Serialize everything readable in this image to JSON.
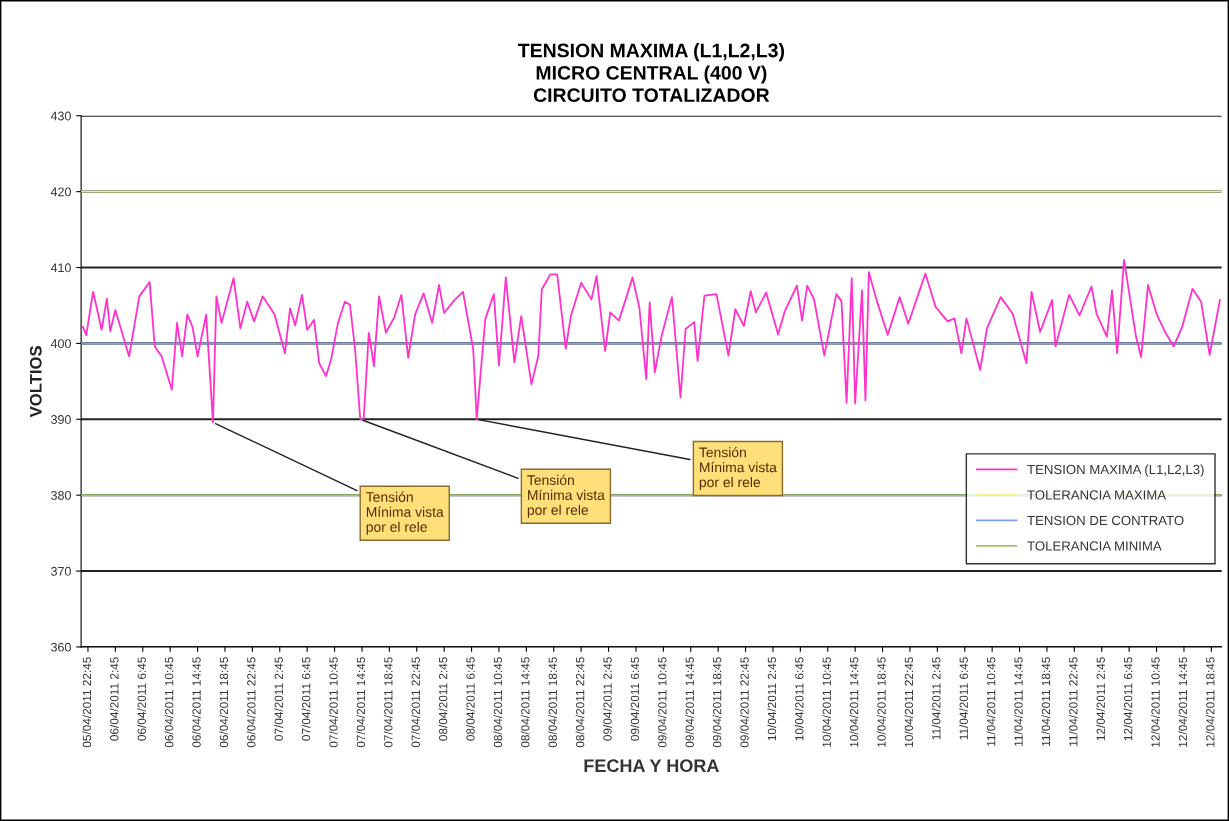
{
  "chart_data": {
    "type": "line",
    "title": "TENSION MAXIMA (L1,L2,L3)\nMICRO CENTRAL (400 V)\nCIRCUITO TOTALIZADOR",
    "xlabel": "FECHA Y HORA",
    "ylabel": "VOLTIOS",
    "series": [
      {
        "name": "TENSION MAXIMA (L1,L2,L3)",
        "color": "#ff33cc",
        "x": [
          "2011-04-05T22:00",
          "2011-04-05T22:30",
          "2011-04-05T23:30",
          "2011-04-06T00:45",
          "2011-04-06T01:30",
          "2011-04-06T02:00",
          "2011-04-06T02:45",
          "2011-04-06T04:45",
          "2011-04-06T06:15",
          "2011-04-06T07:45",
          "2011-04-06T08:30",
          "2011-04-06T09:30",
          "2011-04-06T11:00",
          "2011-04-06T11:45",
          "2011-04-06T12:30",
          "2011-04-06T13:15",
          "2011-04-06T14:00",
          "2011-04-06T14:45",
          "2011-04-06T16:00",
          "2011-04-06T17:00",
          "2011-04-06T17:30",
          "2011-04-06T18:15",
          "2011-04-06T20:00",
          "2011-04-06T21:00",
          "2011-04-06T22:00",
          "2011-04-06T23:00",
          "2011-04-07T00:15",
          "2011-04-07T02:00",
          "2011-04-07T03:30",
          "2011-04-07T04:15",
          "2011-04-07T05:00",
          "2011-04-07T06:00",
          "2011-04-07T06:45",
          "2011-04-07T07:45",
          "2011-04-07T08:30",
          "2011-04-07T09:30",
          "2011-04-07T10:15",
          "2011-04-07T11:15",
          "2011-04-07T12:15",
          "2011-04-07T13:00",
          "2011-04-07T13:45",
          "2011-04-07T14:30",
          "2011-04-07T15:00",
          "2011-04-07T15:45",
          "2011-04-07T16:30",
          "2011-04-07T17:15",
          "2011-04-07T18:15",
          "2011-04-07T19:30",
          "2011-04-07T20:30",
          "2011-04-07T21:30",
          "2011-04-07T22:30",
          "2011-04-07T23:45",
          "2011-04-08T01:00",
          "2011-04-08T02:00",
          "2011-04-08T02:45",
          "2011-04-08T04:15",
          "2011-04-08T05:30",
          "2011-04-08T07:00",
          "2011-04-08T07:30",
          "2011-04-08T08:45",
          "2011-04-08T10:00",
          "2011-04-08T10:45",
          "2011-04-08T11:45",
          "2011-04-08T13:00",
          "2011-04-08T14:00",
          "2011-04-08T15:30",
          "2011-04-08T16:30",
          "2011-04-08T17:00",
          "2011-04-08T18:15",
          "2011-04-08T19:15",
          "2011-04-08T20:30",
          "2011-04-08T21:15",
          "2011-04-08T22:45",
          "2011-04-09T00:15",
          "2011-04-09T01:00",
          "2011-04-09T02:15",
          "2011-04-09T03:00",
          "2011-04-09T04:15",
          "2011-04-09T05:15",
          "2011-04-09T06:15",
          "2011-04-09T07:15",
          "2011-04-09T08:15",
          "2011-04-09T08:45",
          "2011-04-09T09:30",
          "2011-04-09T10:30",
          "2011-04-09T12:00",
          "2011-04-09T13:15",
          "2011-04-09T14:00",
          "2011-04-09T15:15",
          "2011-04-09T15:45",
          "2011-04-09T16:45",
          "2011-04-09T18:30",
          "2011-04-09T20:15",
          "2011-04-09T21:15",
          "2011-04-09T22:30",
          "2011-04-09T23:30",
          "2011-04-10T00:15",
          "2011-04-10T01:45",
          "2011-04-10T03:30",
          "2011-04-10T04:30",
          "2011-04-10T06:15",
          "2011-04-10T07:00",
          "2011-04-10T07:45",
          "2011-04-10T08:45",
          "2011-04-10T10:15",
          "2011-04-10T12:00",
          "2011-04-10T12:45",
          "2011-04-10T13:30",
          "2011-04-10T14:15",
          "2011-04-10T14:45",
          "2011-04-10T15:45",
          "2011-04-10T16:15",
          "2011-04-10T16:45",
          "2011-04-10T17:45",
          "2011-04-10T19:30",
          "2011-04-10T21:15",
          "2011-04-10T22:30",
          "2011-04-11T01:00",
          "2011-04-11T02:30",
          "2011-04-11T04:15",
          "2011-04-11T05:15",
          "2011-04-11T06:15",
          "2011-04-11T07:00",
          "2011-04-11T09:00",
          "2011-04-11T10:00",
          "2011-04-11T12:00",
          "2011-04-11T13:45",
          "2011-04-11T15:45",
          "2011-04-11T16:30",
          "2011-04-11T17:45",
          "2011-04-11T19:30",
          "2011-04-11T20:00",
          "2011-04-11T22:00",
          "2011-04-11T23:30",
          "2011-04-12T01:15",
          "2011-04-12T02:00",
          "2011-04-12T03:30",
          "2011-04-12T04:15",
          "2011-04-12T05:00",
          "2011-04-12T06:00",
          "2011-04-12T07:45",
          "2011-04-12T08:30",
          "2011-04-12T09:30",
          "2011-04-12T10:45",
          "2011-04-12T12:00",
          "2011-04-12T13:15",
          "2011-04-12T14:30",
          "2011-04-12T16:00",
          "2011-04-12T17:15",
          "2011-04-12T18:30",
          "2011-04-12T20:00"
        ],
        "values": [
          402.2,
          401.1,
          406.8,
          401.8,
          405.9,
          401.6,
          404.4,
          398.3,
          406.2,
          408.1,
          399.6,
          398.3,
          393.9,
          402.7,
          398.3,
          403.8,
          402.2,
          398.3,
          403.8,
          389.6,
          406.2,
          402.7,
          408.6,
          402.0,
          405.5,
          402.9,
          406.2,
          403.8,
          398.7,
          404.6,
          402.4,
          406.4,
          401.8,
          403.1,
          397.4,
          395.7,
          397.9,
          402.7,
          405.5,
          405.1,
          399.2,
          390.0,
          390.0,
          401.4,
          397.0,
          406.2,
          401.4,
          403.5,
          406.4,
          398.1,
          403.8,
          406.6,
          402.7,
          407.7,
          404.0,
          405.7,
          406.8,
          399.2,
          390.0,
          403.2,
          406.5,
          397.1,
          408.7,
          397.5,
          403.6,
          394.6,
          398.4,
          407.1,
          409.1,
          409.1,
          399.3,
          403.6,
          408.0,
          405.8,
          408.9,
          399.0,
          404.1,
          403.0,
          405.8,
          408.7,
          404.7,
          395.3,
          405.4,
          396.2,
          401.0,
          406.1,
          392.9,
          401.9,
          402.8,
          397.7,
          406.3,
          406.5,
          398.4,
          404.5,
          402.3,
          406.9,
          404.1,
          406.7,
          401.2,
          404.3,
          407.6,
          403.0,
          407.6,
          405.8,
          398.4,
          406.5,
          405.6,
          392.2,
          408.6,
          392.1,
          407.0,
          392.5,
          409.4,
          406.1,
          401.1,
          406.1,
          402.6,
          409.2,
          404.8,
          402.9,
          403.3,
          398.7,
          403.3,
          396.5,
          402.0,
          406.1,
          403.9,
          397.4,
          406.8,
          401.5,
          405.7,
          399.6,
          406.4,
          403.7,
          407.5,
          403.9,
          400.9,
          407.0,
          398.7,
          411.0,
          400.9,
          398.2,
          407.7,
          403.9,
          401.5,
          399.6,
          402.2,
          407.2,
          405.5,
          398.5,
          405.7
        ]
      }
    ],
    "ref_lines": [
      {
        "axis": "y",
        "value": 420,
        "label": "TOLERANCIA MAXIMA",
        "color": "#f0f08c"
      },
      {
        "axis": "y",
        "value": 400,
        "label": "TENSION DE CONTRATO",
        "color": "#7fa0f0"
      },
      {
        "axis": "y",
        "value": 380,
        "label": "TOLERANCIA MINIMA",
        "color": "#9cc46a"
      }
    ],
    "annotations": [
      {
        "text": "Tensión\nMínima vista\npor el rele",
        "x": "2011-04-06T17:00",
        "y": 389.6
      },
      {
        "text": "Tensión\nMínima vista\npor el rele",
        "x": "2011-04-07T14:30",
        "y": 390.0
      },
      {
        "text": "Tensión\nMínima vista\npor el rele",
        "x": "2011-04-08T07:30",
        "y": 390.0
      }
    ],
    "ylim": [
      360,
      430
    ],
    "yticks": [
      360,
      370,
      380,
      390,
      400,
      410,
      420,
      430
    ],
    "xlim": [
      "2011-04-05T21:45",
      "2011-04-12T20:15"
    ],
    "xticks": [
      {
        "value": "2011-04-05T22:45",
        "label": "05/04/2011 22:45"
      },
      {
        "value": "2011-04-06T02:45",
        "label": "06/04/2011 2:45"
      },
      {
        "value": "2011-04-06T06:45",
        "label": "06/04/2011 6:45"
      },
      {
        "value": "2011-04-06T10:45",
        "label": "06/04/2011 10:45"
      },
      {
        "value": "2011-04-06T14:45",
        "label": "06/04/2011 14:45"
      },
      {
        "value": "2011-04-06T18:45",
        "label": "06/04/2011 18:45"
      },
      {
        "value": "2011-04-06T22:45",
        "label": "06/04/2011 22:45"
      },
      {
        "value": "2011-04-07T02:45",
        "label": "07/04/2011 2:45"
      },
      {
        "value": "2011-04-07T06:45",
        "label": "07/04/2011 6:45"
      },
      {
        "value": "2011-04-07T10:45",
        "label": "07/04/2011 10:45"
      },
      {
        "value": "2011-04-07T14:45",
        "label": "07/04/2011 14:45"
      },
      {
        "value": "2011-04-07T18:45",
        "label": "07/04/2011 18:45"
      },
      {
        "value": "2011-04-07T22:45",
        "label": "07/04/2011 22:45"
      },
      {
        "value": "2011-04-08T02:45",
        "label": "08/04/2011 2:45"
      },
      {
        "value": "2011-04-08T06:45",
        "label": "08/04/2011 6:45"
      },
      {
        "value": "2011-04-08T10:45",
        "label": "08/04/2011 10:45"
      },
      {
        "value": "2011-04-08T14:45",
        "label": "08/04/2011 14:45"
      },
      {
        "value": "2011-04-08T18:45",
        "label": "08/04/2011 18:45"
      },
      {
        "value": "2011-04-08T22:45",
        "label": "08/04/2011 22:45"
      },
      {
        "value": "2011-04-09T02:45",
        "label": "09/04/2011 2:45"
      },
      {
        "value": "2011-04-09T06:45",
        "label": "09/04/2011 6:45"
      },
      {
        "value": "2011-04-09T10:45",
        "label": "09/04/2011 10:45"
      },
      {
        "value": "2011-04-09T14:45",
        "label": "09/04/2011 14:45"
      },
      {
        "value": "2011-04-09T18:45",
        "label": "09/04/2011 18:45"
      },
      {
        "value": "2011-04-09T22:45",
        "label": "09/04/2011 22:45"
      },
      {
        "value": "2011-04-10T02:45",
        "label": "10/04/2011 2:45"
      },
      {
        "value": "2011-04-10T06:45",
        "label": "10/04/2011 6:45"
      },
      {
        "value": "2011-04-10T10:45",
        "label": "10/04/2011 10:45"
      },
      {
        "value": "2011-04-10T14:45",
        "label": "10/04/2011 14:45"
      },
      {
        "value": "2011-04-10T18:45",
        "label": "10/04/2011 18:45"
      },
      {
        "value": "2011-04-10T22:45",
        "label": "10/04/2011 22:45"
      },
      {
        "value": "2011-04-11T02:45",
        "label": "11/04/2011 2:45"
      },
      {
        "value": "2011-04-11T06:45",
        "label": "11/04/2011 6:45"
      },
      {
        "value": "2011-04-11T10:45",
        "label": "11/04/2011 10:45"
      },
      {
        "value": "2011-04-11T14:45",
        "label": "11/04/2011 14:45"
      },
      {
        "value": "2011-04-11T18:45",
        "label": "11/04/2011 18:45"
      },
      {
        "value": "2011-04-11T22:45",
        "label": "11/04/2011 22:45"
      },
      {
        "value": "2011-04-12T02:45",
        "label": "12/04/2011 2:45"
      },
      {
        "value": "2011-04-12T06:45",
        "label": "12/04/2011 6:45"
      },
      {
        "value": "2011-04-12T10:45",
        "label": "12/04/2011 10:45"
      },
      {
        "value": "2011-04-12T14:45",
        "label": "12/04/2011 14:45"
      },
      {
        "value": "2011-04-12T18:45",
        "label": "12/04/2011 18:45"
      }
    ],
    "grid": "y",
    "legend": "right",
    "marker": "none",
    "line_style": "solid"
  }
}
